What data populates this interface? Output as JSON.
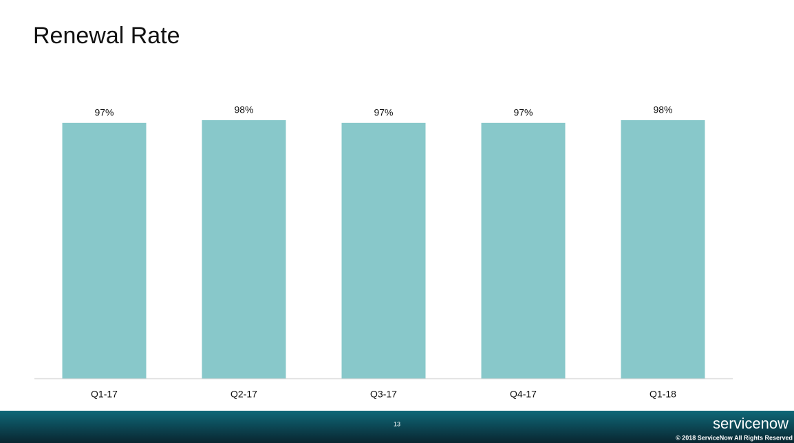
{
  "chart_data": {
    "type": "bar",
    "title": "Renewal Rate",
    "categories": [
      "Q1-17",
      "Q2-17",
      "Q3-17",
      "Q4-17",
      "Q1-18"
    ],
    "values": [
      97,
      98,
      97,
      97,
      98
    ],
    "value_labels": [
      "97%",
      "98%",
      "97%",
      "97%",
      "98%"
    ],
    "color": "#88c8ca"
  },
  "footer": {
    "page_number": "13",
    "logo": "servicenow",
    "copyright": "© 2018 ServiceNow All Rights Reserved"
  }
}
